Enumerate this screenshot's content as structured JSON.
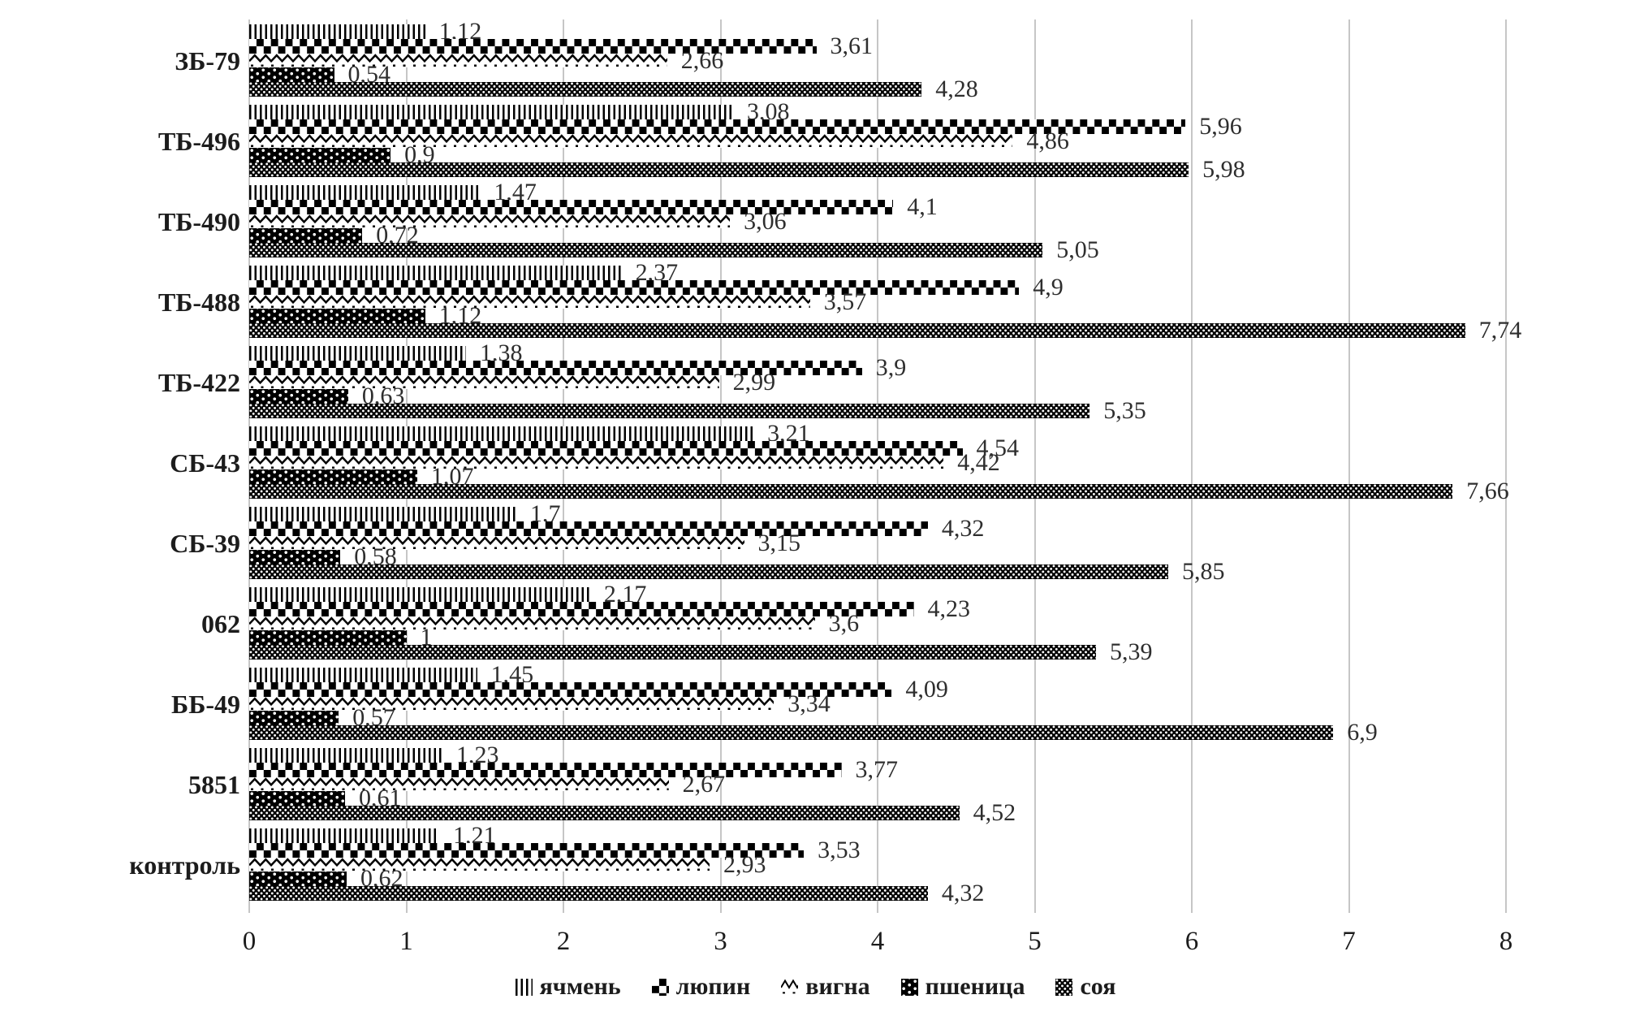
{
  "chart_data": {
    "type": "bar",
    "orientation": "horizontal",
    "title": "",
    "categories": [
      "ЗБ-79",
      "ТБ-496",
      "ТБ-490",
      "ТБ-488",
      "ТБ-422",
      "СБ-43",
      "СБ-39",
      "062",
      "ББ-49",
      "5851",
      "контроль"
    ],
    "series": [
      {
        "name": "ячмень",
        "pattern": "vertical-lines",
        "values": [
          1.12,
          3.08,
          1.47,
          2.37,
          1.38,
          3.21,
          1.7,
          2.17,
          1.45,
          1.23,
          1.21
        ],
        "labels": [
          "1,12",
          "3,08",
          "1,47",
          "2,37",
          "1,38",
          "3,21",
          "1,7",
          "2,17",
          "1,45",
          "1,23",
          "1,21"
        ]
      },
      {
        "name": "люпин",
        "pattern": "checkerboard",
        "values": [
          3.61,
          5.96,
          4.1,
          4.9,
          3.9,
          4.54,
          4.32,
          4.23,
          4.09,
          3.77,
          3.53
        ],
        "labels": [
          "3,61",
          "5,96",
          "4,1",
          "4,9",
          "3,9",
          "4,54",
          "4,32",
          "4,23",
          "4,09",
          "3,77",
          "3,53"
        ]
      },
      {
        "name": "вигна",
        "pattern": "zigzag-wave",
        "values": [
          2.66,
          4.86,
          3.06,
          3.57,
          2.99,
          4.42,
          3.15,
          3.6,
          3.34,
          2.67,
          2.93
        ],
        "labels": [
          "2,66",
          "4,86",
          "3,06",
          "3,57",
          "2,99",
          "4,42",
          "3,15",
          "3,6",
          "3,34",
          "2,67",
          "2,93"
        ]
      },
      {
        "name": "пшеница",
        "pattern": "black-with-dots",
        "values": [
          0.54,
          0.9,
          0.72,
          1.12,
          0.63,
          1.07,
          0.58,
          1,
          0.57,
          0.61,
          0.62
        ],
        "labels": [
          "0,54",
          "0,9",
          "0,72",
          "1,12",
          "0,63",
          "1,07",
          "0,58",
          "1",
          "0,57",
          "0,61",
          "0,62"
        ]
      },
      {
        "name": "соя",
        "pattern": "fine-weave",
        "values": [
          4.28,
          5.98,
          5.05,
          7.74,
          5.35,
          7.66,
          5.85,
          5.39,
          6.9,
          4.52,
          4.32
        ],
        "labels": [
          "4,28",
          "5,98",
          "5,05",
          "7,74",
          "5,35",
          "7,66",
          "5,85",
          "5,39",
          "6,9",
          "4,52",
          "4,32"
        ]
      }
    ],
    "x_axis": {
      "min": 0,
      "max": 8,
      "ticks": [
        "0",
        "1",
        "2",
        "3",
        "4",
        "5",
        "6",
        "7",
        "8"
      ],
      "grid": true
    },
    "legend": {
      "position": "bottom",
      "entries": [
        "ячмень",
        "люпин",
        "вигна",
        "пшеница",
        "соя"
      ]
    },
    "colors": {
      "bar": "#000000",
      "background": "#ffffff",
      "gridline": "#c6c6c6",
      "text": "#1c1c1c",
      "value_label": "#2e2e2e"
    }
  }
}
